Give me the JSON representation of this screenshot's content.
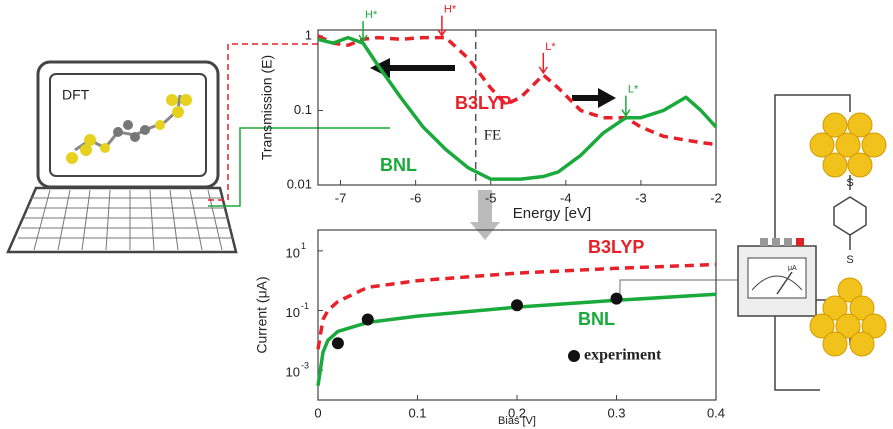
{
  "chart_data": [
    {
      "type": "line",
      "y_label": "Transmission (E)",
      "x_label": "Energy [eV]",
      "log_y": true,
      "xlim": [
        -7.3,
        -2
      ],
      "xticks": [
        -7,
        -6,
        -5,
        -4,
        -3,
        -2
      ],
      "ylim": [
        0.01,
        1.2
      ],
      "yticks": [
        0.01,
        0.1,
        1
      ],
      "x": [
        -7.3,
        -7.1,
        -6.9,
        -6.7,
        -6.5,
        -6.2,
        -5.9,
        -5.6,
        -5.3,
        -5.0,
        -4.8,
        -4.6,
        -4.3,
        -4.1,
        -3.8,
        -3.5,
        -3.2,
        -3.0,
        -2.7,
        -2.4,
        -2.2,
        -2.0
      ],
      "series": [
        {
          "name": "B3LYP",
          "color": "#e8202a",
          "style": "dashed",
          "values": [
            1.0,
            0.8,
            0.75,
            0.9,
            0.95,
            0.9,
            0.95,
            0.95,
            0.5,
            0.2,
            0.12,
            0.15,
            0.3,
            0.2,
            0.1,
            0.08,
            0.08,
            0.06,
            0.045,
            0.04,
            0.037,
            0.035
          ]
        },
        {
          "name": "BNL",
          "color": "#1aaa3c",
          "style": "solid",
          "values": [
            0.9,
            0.8,
            0.95,
            0.8,
            0.4,
            0.15,
            0.06,
            0.03,
            0.017,
            0.012,
            0.012,
            0.012,
            0.013,
            0.015,
            0.025,
            0.05,
            0.08,
            0.08,
            0.1,
            0.15,
            0.1,
            0.06
          ]
        }
      ],
      "fermi_energy": -5.2,
      "annotations": [
        "H*",
        "H*",
        "L*",
        "L*",
        "FE"
      ]
    },
    {
      "type": "line",
      "y_label": "Current (μA)",
      "x_label": "Bias [V]",
      "log_y": true,
      "xlim": [
        0,
        0.4
      ],
      "xticks": [
        0,
        0.1,
        0.2,
        0.3,
        0.4
      ],
      "ylim": [
        0.0001,
        50
      ],
      "yticks": [
        {
          "value": 0.001,
          "label": "10",
          "exponent": "-3"
        },
        {
          "value": 0.1,
          "label": "10",
          "exponent": "-1"
        },
        {
          "value": 10,
          "label": "10",
          "exponent": "1"
        }
      ],
      "x": [
        0,
        0.005,
        0.01,
        0.02,
        0.05,
        0.1,
        0.2,
        0.3,
        0.4
      ],
      "series": [
        {
          "name": "B3LYP",
          "color": "#e8202a",
          "style": "dashed",
          "values": [
            0.005,
            0.05,
            0.1,
            0.2,
            0.6,
            1.0,
            1.8,
            2.6,
            3.5
          ]
        },
        {
          "name": "BNL",
          "color": "#1aaa3c",
          "style": "solid",
          "values": [
            0.0003,
            0.004,
            0.01,
            0.02,
            0.04,
            0.065,
            0.13,
            0.22,
            0.35
          ]
        },
        {
          "name": "experiment",
          "color": "#111111",
          "style": "markers",
          "x": [
            0.02,
            0.05,
            0.2,
            0.3
          ],
          "values": [
            0.008,
            0.05,
            0.15,
            0.25
          ]
        }
      ]
    }
  ],
  "illustration": {
    "laptop_label": "DFT",
    "meter_label": "μA",
    "sulfur_labels": [
      "S",
      "S"
    ]
  }
}
